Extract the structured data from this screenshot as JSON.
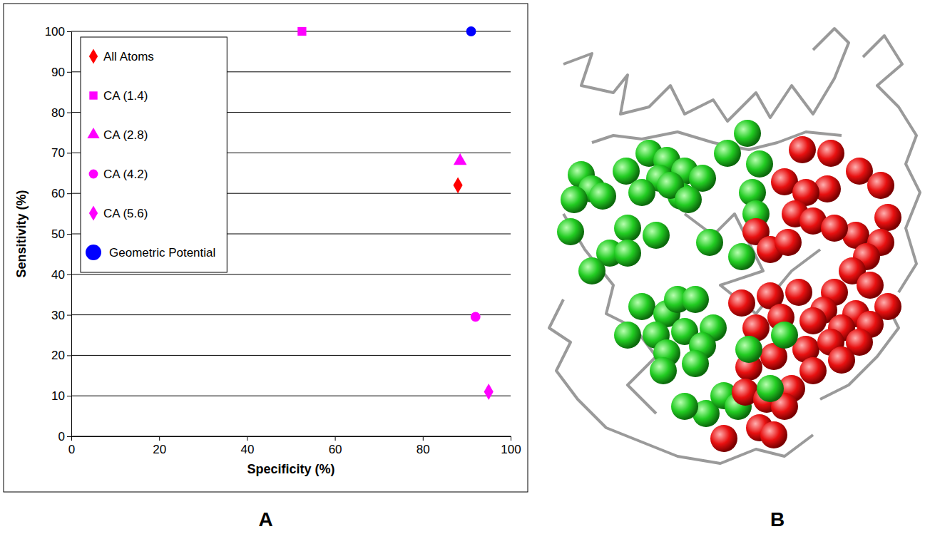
{
  "chart_data": {
    "type": "scatter",
    "x_label": "Specificity (%)",
    "y_label": "Sensitivity (%)",
    "series": [
      {
        "name": "All Atoms",
        "color": "#ff0000",
        "marker": "diamond",
        "x": [
          88
        ],
        "values": [
          62
        ]
      },
      {
        "name": "CA (1.4)",
        "color": "#ff00ff",
        "marker": "square",
        "x": [
          52.5
        ],
        "values": [
          100
        ]
      },
      {
        "name": "CA (2.8)",
        "color": "#ff00ff",
        "marker": "triangle",
        "x": [
          88.5
        ],
        "values": [
          68
        ]
      },
      {
        "name": "CA (4.2)",
        "color": "#ff00ff",
        "marker": "circle",
        "x": [
          92
        ],
        "values": [
          29.5
        ]
      },
      {
        "name": "CA (5.6)",
        "color": "#ff00ff",
        "marker": "diamond",
        "x": [
          95
        ],
        "values": [
          11
        ]
      },
      {
        "name": "Geometric Potential",
        "color": "#0000ff",
        "marker": "circle",
        "x": [
          91
        ],
        "values": [
          100
        ]
      }
    ],
    "xlim": [
      0,
      100
    ],
    "xticks": [
      0,
      20,
      40,
      60,
      80,
      100
    ],
    "ylim": [
      0,
      100
    ],
    "yticks": [
      0,
      10,
      20,
      30,
      40,
      50,
      60,
      70,
      80,
      90,
      100
    ],
    "grid": "y",
    "legend": "upper left"
  },
  "figure": {
    "panel_labels": [
      "A",
      "B"
    ]
  }
}
